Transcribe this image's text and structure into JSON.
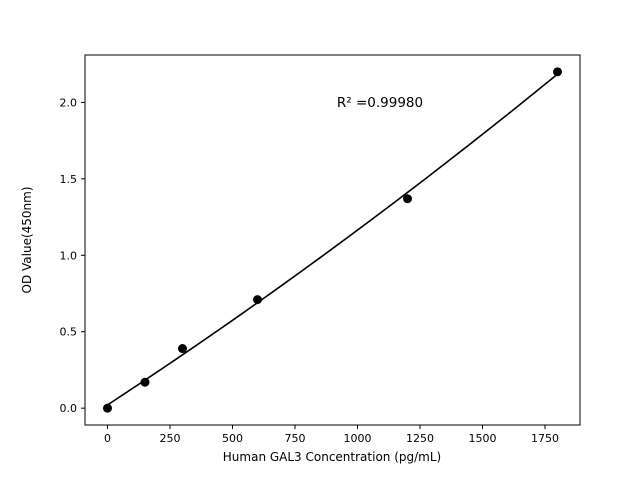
{
  "figure": {
    "background": "#ffffff"
  },
  "chart_data": {
    "type": "scatter",
    "title": "",
    "xlabel": "Human GAL3 Concentration (pg/mL)",
    "ylabel": "OD Value(450nm)",
    "annotation": "R² =0.99980",
    "xlim": [
      -90,
      1890
    ],
    "ylim": [
      -0.11,
      2.31
    ],
    "x_ticks": [
      {
        "value": 0,
        "label": "0"
      },
      {
        "value": 250,
        "label": "250"
      },
      {
        "value": 500,
        "label": "500"
      },
      {
        "value": 750,
        "label": "750"
      },
      {
        "value": 1000,
        "label": "1000"
      },
      {
        "value": 1250,
        "label": "1250"
      },
      {
        "value": 1500,
        "label": "1500"
      },
      {
        "value": 1750,
        "label": "1750"
      }
    ],
    "y_ticks": [
      {
        "value": 0.0,
        "label": "0.0"
      },
      {
        "value": 0.5,
        "label": "0.5"
      },
      {
        "value": 1.0,
        "label": "1.0"
      },
      {
        "value": 1.5,
        "label": "1.5"
      },
      {
        "value": 2.0,
        "label": "2.0"
      }
    ],
    "points": [
      {
        "x": 0,
        "y": 0.0
      },
      {
        "x": 150,
        "y": 0.17
      },
      {
        "x": 300,
        "y": 0.39
      },
      {
        "x": 600,
        "y": 0.71
      },
      {
        "x": 1200,
        "y": 1.37
      },
      {
        "x": 1800,
        "y": 2.2
      }
    ],
    "trendline": {
      "type": "quadratic-fit",
      "show": true
    },
    "marker_color": "#000000",
    "line_color": "#000000",
    "grid": false,
    "legend": "none"
  }
}
